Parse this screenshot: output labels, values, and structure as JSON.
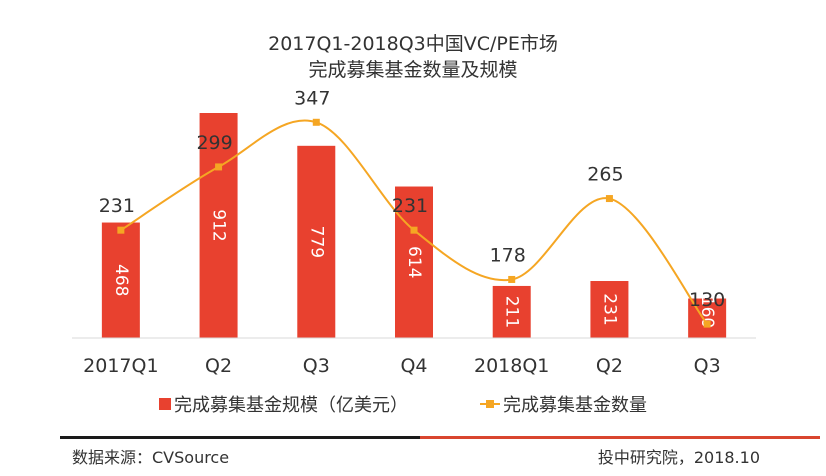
{
  "chart_data": {
    "type": "bar",
    "title": "2017Q1-2018Q3中国VC/PE市场\n完成募集基金数量及规模",
    "categories": [
      "2017Q1",
      "Q2",
      "Q3",
      "Q4",
      "2018Q1",
      "Q2",
      "Q3"
    ],
    "series": [
      {
        "name": "完成募集基金规模（亿美元）",
        "type": "bar",
        "values": [
          468,
          912,
          779,
          614,
          211,
          231,
          160
        ],
        "color": "#e8412f"
      },
      {
        "name": "完成募集基金数量",
        "type": "line",
        "values": [
          231,
          299,
          347,
          231,
          178,
          265,
          130
        ],
        "color": "#f5a623"
      }
    ],
    "legend_position": "bottom",
    "grid": false
  },
  "footer": {
    "source": "数据来源：CVSource",
    "brand": "投中研究院，2018.10"
  }
}
